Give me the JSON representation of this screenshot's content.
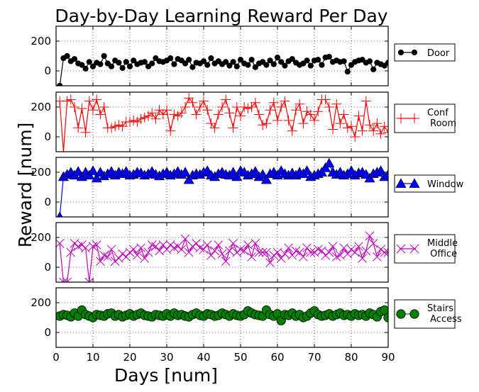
{
  "chart_data": {
    "type": "line",
    "title": "Day-by-Day Learning Reward Per Day",
    "xlabel": "Days [num]",
    "ylabel": "Reward [num]",
    "xlim": [
      0,
      90
    ],
    "ylim": [
      -100,
      300
    ],
    "x_ticks": [
      0,
      10,
      20,
      30,
      40,
      50,
      60,
      70,
      80,
      90
    ],
    "y_ticks": [
      0,
      200
    ],
    "grid": true,
    "legend_position": "right of each panel",
    "panels": [
      {
        "name": "Door",
        "color": "#000000",
        "marker": "circle-line",
        "x": [
          1,
          2,
          3,
          4,
          5,
          6,
          7,
          8,
          9,
          10,
          11,
          12,
          13,
          14,
          15,
          16,
          17,
          18,
          19,
          20,
          21,
          22,
          23,
          24,
          25,
          26,
          27,
          28,
          29,
          30,
          31,
          32,
          33,
          34,
          35,
          36,
          37,
          38,
          39,
          40,
          41,
          42,
          43,
          44,
          45,
          46,
          47,
          48,
          49,
          50,
          51,
          52,
          53,
          54,
          55,
          56,
          57,
          58,
          59,
          60,
          61,
          62,
          63,
          64,
          65,
          66,
          67,
          68,
          69,
          70,
          71,
          72,
          73,
          74,
          75,
          76,
          77,
          78,
          79,
          80,
          81,
          82,
          83,
          84,
          85,
          86,
          87,
          88,
          89,
          90
        ],
        "values": [
          -100,
          85,
          100,
          65,
          80,
          50,
          40,
          15,
          60,
          30,
          55,
          45,
          100,
          50,
          30,
          70,
          55,
          20,
          60,
          30,
          70,
          45,
          55,
          60,
          30,
          50,
          85,
          65,
          60,
          70,
          85,
          45,
          80,
          70,
          50,
          75,
          25,
          55,
          50,
          65,
          40,
          85,
          50,
          65,
          45,
          60,
          35,
          60,
          30,
          75,
          50,
          40,
          75,
          25,
          50,
          60,
          40,
          70,
          45,
          90,
          60,
          35,
          65,
          80,
          55,
          40,
          50,
          70,
          35,
          70,
          75,
          40,
          90,
          95,
          60,
          70,
          60,
          65,
          -5,
          40,
          60,
          70,
          75,
          55,
          65,
          10,
          55,
          45,
          35,
          55
        ]
      },
      {
        "name": "Conf\n Room",
        "color": "#ff0000",
        "marker": "plus",
        "x": [
          1,
          2,
          3,
          4,
          5,
          6,
          7,
          8,
          9,
          10,
          11,
          12,
          13,
          14,
          15,
          16,
          17,
          18,
          19,
          20,
          21,
          22,
          23,
          24,
          25,
          26,
          27,
          28,
          29,
          30,
          31,
          32,
          33,
          34,
          35,
          36,
          37,
          38,
          39,
          40,
          41,
          42,
          43,
          44,
          45,
          46,
          47,
          48,
          49,
          50,
          51,
          52,
          53,
          54,
          55,
          56,
          57,
          58,
          59,
          60,
          61,
          62,
          63,
          64,
          65,
          66,
          67,
          68,
          69,
          70,
          71,
          72,
          73,
          74,
          75,
          76,
          77,
          78,
          79,
          80,
          81,
          82,
          83,
          84,
          85,
          86,
          87,
          88,
          89,
          90
        ],
        "values": [
          240,
          -100,
          240,
          250,
          200,
          60,
          190,
          30,
          240,
          180,
          250,
          150,
          200,
          60,
          60,
          70,
          80,
          70,
          100,
          100,
          110,
          100,
          120,
          130,
          140,
          160,
          120,
          180,
          150,
          180,
          40,
          150,
          140,
          160,
          200,
          260,
          230,
          150,
          200,
          240,
          180,
          90,
          60,
          150,
          200,
          250,
          160,
          60,
          200,
          140,
          200,
          190,
          200,
          230,
          150,
          80,
          90,
          180,
          230,
          110,
          200,
          240,
          110,
          40,
          180,
          220,
          90,
          170,
          150,
          110,
          170,
          250,
          250,
          200,
          50,
          220,
          90,
          150,
          60,
          70,
          0,
          140,
          40,
          240,
          80,
          40,
          90,
          20,
          70,
          30
        ]
      },
      {
        "name": "Window",
        "color": "#0000ff",
        "marker": "triangle-line",
        "x": [
          1,
          2,
          3,
          4,
          5,
          6,
          7,
          8,
          9,
          10,
          11,
          12,
          13,
          14,
          15,
          16,
          17,
          18,
          19,
          20,
          21,
          22,
          23,
          24,
          25,
          26,
          27,
          28,
          29,
          30,
          31,
          32,
          33,
          34,
          35,
          36,
          37,
          38,
          39,
          40,
          41,
          42,
          43,
          44,
          45,
          46,
          47,
          48,
          49,
          50,
          51,
          52,
          53,
          54,
          55,
          56,
          57,
          58,
          59,
          60,
          61,
          62,
          63,
          64,
          65,
          66,
          67,
          68,
          69,
          70,
          71,
          72,
          73,
          74,
          75,
          76,
          77,
          78,
          79,
          80,
          81,
          82,
          83,
          84,
          85,
          86,
          87,
          88,
          89,
          90
        ],
        "values": [
          -100,
          170,
          185,
          200,
          180,
          205,
          170,
          200,
          180,
          210,
          160,
          200,
          175,
          190,
          205,
          180,
          200,
          190,
          205,
          180,
          185,
          200,
          195,
          180,
          190,
          205,
          185,
          175,
          190,
          200,
          180,
          190,
          205,
          185,
          200,
          150,
          180,
          190,
          185,
          200,
          210,
          180,
          170,
          190,
          200,
          185,
          180,
          200,
          170,
          210,
          200,
          180,
          190,
          205,
          170,
          185,
          150,
          190,
          200,
          180,
          210,
          190,
          180,
          195,
          180,
          200,
          190,
          210,
          170,
          180,
          190,
          200,
          230,
          260,
          200,
          185,
          200,
          180,
          190,
          210,
          180,
          195,
          200,
          185,
          160,
          190,
          200,
          210,
          170,
          185
        ]
      },
      {
        "name": "Middle\n Office",
        "color": "#bf00bf",
        "marker": "x",
        "x": [
          1,
          2,
          3,
          4,
          5,
          6,
          7,
          8,
          9,
          10,
          11,
          12,
          13,
          14,
          15,
          16,
          17,
          18,
          19,
          20,
          21,
          22,
          23,
          24,
          25,
          26,
          27,
          28,
          29,
          30,
          31,
          32,
          33,
          34,
          35,
          36,
          37,
          38,
          39,
          40,
          41,
          42,
          43,
          44,
          45,
          46,
          47,
          48,
          49,
          50,
          51,
          52,
          53,
          54,
          55,
          56,
          57,
          58,
          59,
          60,
          61,
          62,
          63,
          64,
          65,
          66,
          67,
          68,
          69,
          70,
          71,
          72,
          73,
          74,
          75,
          76,
          77,
          78,
          79,
          80,
          81,
          82,
          83,
          84,
          85,
          86,
          87,
          88,
          89,
          90
        ],
        "values": [
          160,
          -100,
          -100,
          100,
          160,
          140,
          150,
          130,
          -100,
          140,
          150,
          40,
          80,
          70,
          120,
          40,
          60,
          90,
          70,
          100,
          120,
          80,
          130,
          60,
          100,
          150,
          140,
          110,
          150,
          120,
          150,
          130,
          140,
          120,
          190,
          100,
          140,
          160,
          130,
          120,
          150,
          80,
          110,
          150,
          90,
          40,
          110,
          160,
          100,
          120,
          110,
          150,
          70,
          160,
          100,
          100,
          100,
          30,
          80,
          100,
          60,
          90,
          130,
          80,
          110,
          100,
          70,
          130,
          100,
          100,
          120,
          110,
          80,
          100,
          140,
          70,
          80,
          130,
          90,
          120,
          100,
          140,
          60,
          110,
          210,
          160,
          70,
          120,
          100,
          100
        ]
      },
      {
        "name": "Stairs\n Access",
        "color": "#008000",
        "marker": "circle",
        "x": [
          1,
          2,
          3,
          4,
          5,
          6,
          7,
          8,
          9,
          10,
          11,
          12,
          13,
          14,
          15,
          16,
          17,
          18,
          19,
          20,
          21,
          22,
          23,
          24,
          25,
          26,
          27,
          28,
          29,
          30,
          31,
          32,
          33,
          34,
          35,
          36,
          37,
          38,
          39,
          40,
          41,
          42,
          43,
          44,
          45,
          46,
          47,
          48,
          49,
          50,
          51,
          52,
          53,
          54,
          55,
          56,
          57,
          58,
          59,
          60,
          61,
          62,
          63,
          64,
          65,
          66,
          67,
          68,
          69,
          70,
          71,
          72,
          73,
          74,
          75,
          76,
          77,
          78,
          79,
          80,
          81,
          82,
          83,
          84,
          85,
          86,
          87,
          88,
          89,
          90
        ],
        "values": [
          110,
          120,
          115,
          105,
          130,
          110,
          150,
          120,
          110,
          100,
          120,
          115,
          110,
          125,
          130,
          110,
          120,
          105,
          115,
          125,
          110,
          120,
          130,
          115,
          110,
          105,
          120,
          115,
          110,
          125,
          110,
          130,
          115,
          120,
          110,
          105,
          120,
          130,
          115,
          110,
          125,
          120,
          110,
          115,
          130,
          120,
          110,
          125,
          115,
          110,
          120,
          145,
          130,
          120,
          115,
          110,
          150,
          120,
          110,
          125,
          80,
          120,
          115,
          130,
          110,
          120,
          100,
          110,
          130,
          145,
          120,
          110,
          115,
          125,
          110,
          120,
          130,
          115,
          120,
          110,
          125,
          115,
          120,
          110,
          130,
          120,
          105,
          140,
          150,
          100
        ]
      }
    ]
  }
}
